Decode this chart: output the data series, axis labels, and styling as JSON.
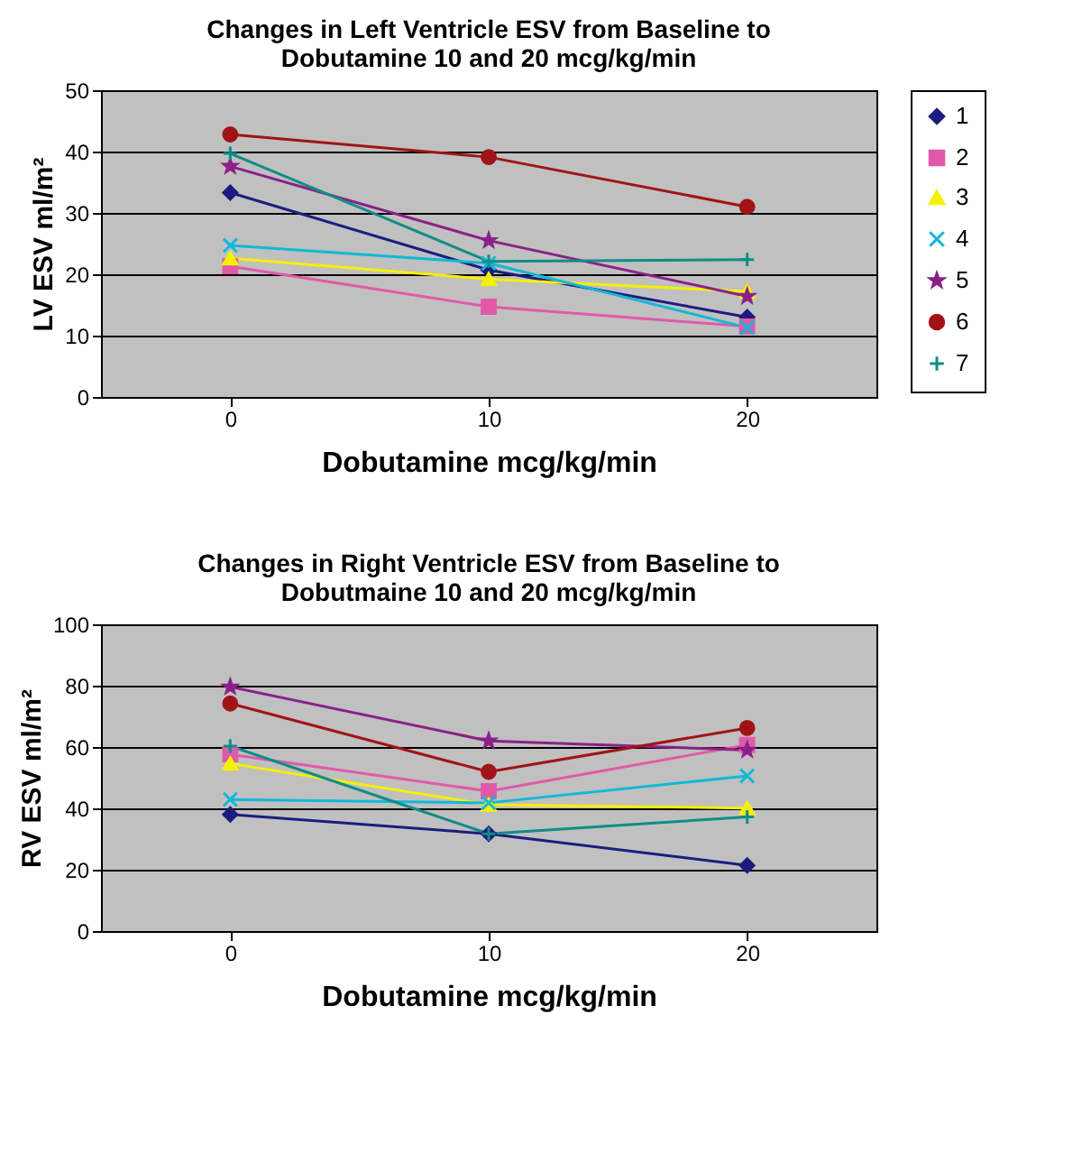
{
  "chart_data": [
    {
      "type": "line",
      "title": "Changes in Left Ventricle ESV from Baseline to\nDobutamine 10 and 20 mcg/kg/min",
      "xlabel": "Dobutamine mcg/kg/min",
      "ylabel": "LV ESV ml/m²",
      "categories": [
        "0",
        "10",
        "20"
      ],
      "ylim": [
        0,
        50
      ],
      "yticks": [
        0,
        10,
        20,
        30,
        40,
        50
      ],
      "grid": "y",
      "legend": "right",
      "series": [
        {
          "name": "1",
          "color": "#1c1c80",
          "marker": "diamond",
          "values": [
            33.3,
            20.7,
            13.0
          ]
        },
        {
          "name": "2",
          "color": "#e05aa8",
          "marker": "square",
          "values": [
            21.3,
            14.7,
            11.5
          ]
        },
        {
          "name": "3",
          "color": "#f5f000",
          "marker": "triangle",
          "values": [
            22.6,
            19.2,
            17.2
          ]
        },
        {
          "name": "4",
          "color": "#10b8d8",
          "marker": "x",
          "values": [
            24.7,
            21.8,
            11.3
          ]
        },
        {
          "name": "5",
          "color": "#8c2088",
          "marker": "star",
          "values": [
            37.6,
            25.5,
            16.4
          ]
        },
        {
          "name": "6",
          "color": "#a01418",
          "marker": "circle",
          "values": [
            42.8,
            39.1,
            31.0
          ]
        },
        {
          "name": "7",
          "color": "#108c88",
          "marker": "cross",
          "values": [
            39.7,
            22.1,
            22.4
          ]
        }
      ]
    },
    {
      "type": "line",
      "title": "Changes in Right Ventricle ESV from Baseline to\nDobutmaine 10 and 20 mcg/kg/min",
      "xlabel": "Dobutamine mcg/kg/min",
      "ylabel": "RV ESV ml/m²",
      "categories": [
        "0",
        "10",
        "20"
      ],
      "ylim": [
        0,
        100
      ],
      "yticks": [
        0,
        20,
        40,
        60,
        80,
        100
      ],
      "grid": "y",
      "legend": "right",
      "series": [
        {
          "name": "1",
          "color": "#1c1c80",
          "marker": "diamond",
          "values": [
            38.0,
            31.7,
            21.4
          ]
        },
        {
          "name": "2",
          "color": "#e05aa8",
          "marker": "square",
          "values": [
            57.6,
            45.6,
            60.7
          ]
        },
        {
          "name": "3",
          "color": "#f5f000",
          "marker": "triangle",
          "values": [
            54.6,
            41.2,
            40.1
          ]
        },
        {
          "name": "4",
          "color": "#10b8d8",
          "marker": "x",
          "values": [
            42.9,
            41.8,
            50.6
          ]
        },
        {
          "name": "5",
          "color": "#8c2088",
          "marker": "star",
          "values": [
            79.6,
            62.0,
            59.0
          ]
        },
        {
          "name": "6",
          "color": "#a01418",
          "marker": "circle",
          "values": [
            74.2,
            51.9,
            66.2
          ]
        },
        {
          "name": "7",
          "color": "#108c88",
          "marker": "cross",
          "values": [
            60.3,
            31.7,
            37.2
          ]
        }
      ]
    }
  ]
}
